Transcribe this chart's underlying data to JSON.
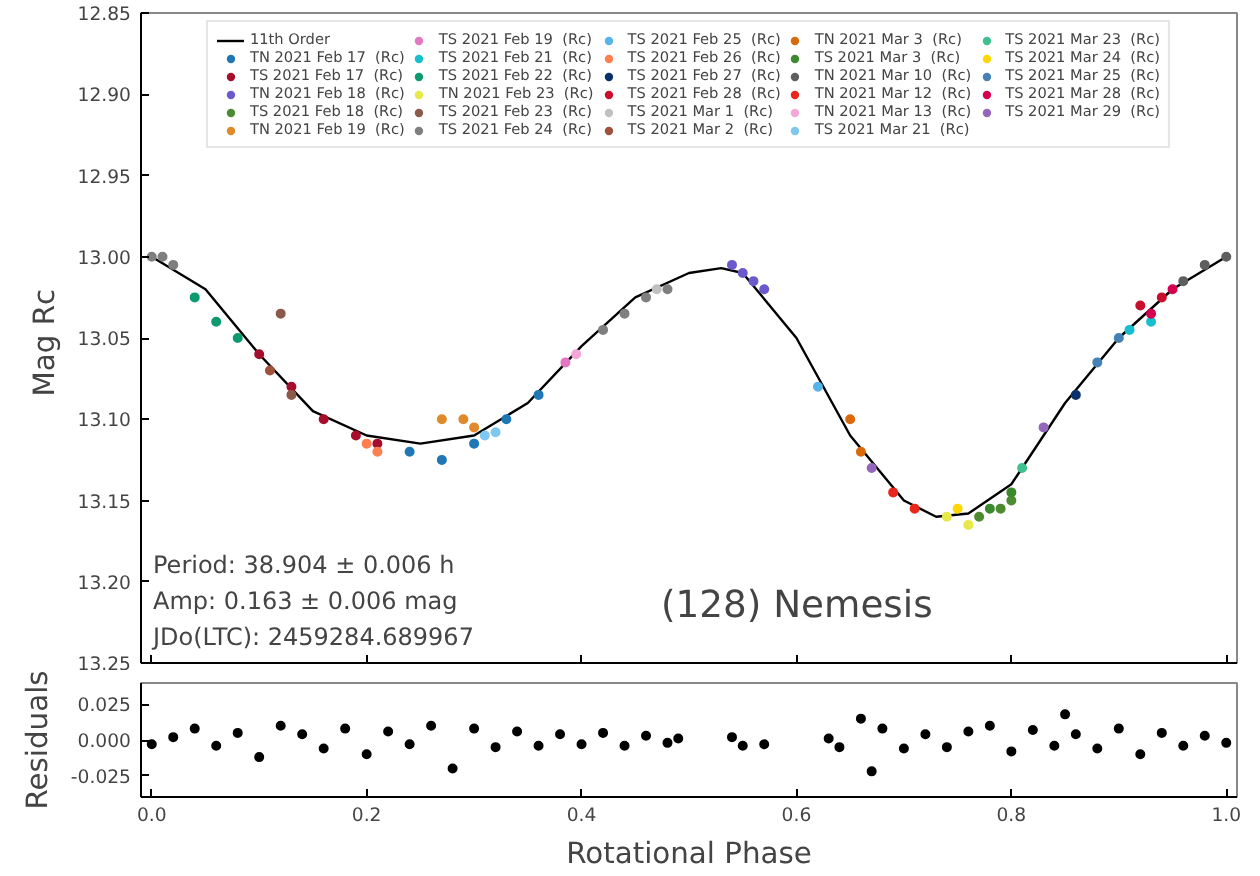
{
  "chart_data": [
    {
      "type": "scatter",
      "ylabel": "Mag  Rc",
      "xlim": [
        -0.01,
        1.01
      ],
      "ylim": [
        13.25,
        12.85
      ],
      "tick_labels": "y",
      "legend": "top",
      "marker": "circle",
      "grid": false,
      "xticks": [
        0,
        0.2,
        0.4,
        0.6,
        0.8,
        1.0
      ],
      "yticks": [
        {
          "value": 12.85,
          "label": "12.85"
        },
        {
          "value": 12.9,
          "label": "12.90"
        },
        {
          "value": 12.95,
          "label": "12.95"
        },
        {
          "value": 13.0,
          "label": "13.00"
        },
        {
          "value": 13.05,
          "label": "13.05"
        },
        {
          "value": 13.1,
          "label": "13.10"
        },
        {
          "value": 13.15,
          "label": "13.15"
        },
        {
          "value": 13.2,
          "label": "13.20"
        },
        {
          "value": 13.25,
          "label": "13.25"
        }
      ],
      "annotations": [
        "Period: 38.904 ± 0.006 h",
        "Amp: 0.163 ± 0.006 mag",
        "JDo(LTC): 2459284.689967",
        "(128) Nemesis"
      ],
      "series": [
        {
          "name": "11th Order",
          "type": "line",
          "marker": "none",
          "color": "#000000",
          "x": [
            0,
            0.05,
            0.1,
            0.15,
            0.2,
            0.25,
            0.3,
            0.35,
            0.4,
            0.45,
            0.5,
            0.53,
            0.55,
            0.6,
            0.65,
            0.7,
            0.73,
            0.76,
            0.8,
            0.85,
            0.9,
            0.95,
            1.0
          ],
          "values": [
            13.0,
            13.02,
            13.06,
            13.095,
            13.11,
            13.115,
            13.11,
            13.09,
            13.055,
            13.025,
            13.01,
            13.007,
            13.01,
            13.05,
            13.11,
            13.15,
            13.16,
            13.158,
            13.14,
            13.09,
            13.05,
            13.02,
            13.0
          ]
        },
        {
          "name": "TN 2021 Feb 17  (Rc)",
          "color": "#1f77b4",
          "x": [
            0.24,
            0.27,
            0.3,
            0.33,
            0.36
          ],
          "values": [
            13.12,
            13.125,
            13.115,
            13.1,
            13.085
          ]
        },
        {
          "name": "TS 2021 Feb 17  (Rc)",
          "color": "#a50f2d",
          "x": [
            0.1,
            0.13,
            0.16,
            0.19,
            0.21
          ],
          "values": [
            13.06,
            13.08,
            13.1,
            13.11,
            13.115
          ]
        },
        {
          "name": "TN 2021 Feb 18  (Rc)",
          "color": "#6a5acd",
          "x": [
            0.54,
            0.55,
            0.56,
            0.57
          ],
          "values": [
            13.005,
            13.01,
            13.015,
            13.02
          ]
        },
        {
          "name": "TS 2021 Feb 18  (Rc)",
          "color": "#4d8b31",
          "x": [
            0.77,
            0.79,
            0.8
          ],
          "values": [
            13.16,
            13.155,
            13.15
          ]
        },
        {
          "name": "TN 2021 Feb 19  (Rc)",
          "color": "#e08a2c",
          "x": [
            0.27,
            0.29,
            0.3
          ],
          "values": [
            13.1,
            13.1,
            13.105
          ]
        },
        {
          "name": "TS 2021 Feb 19  (Rc)",
          "color": "#e377c2",
          "x": [
            0.385
          ],
          "values": [
            13.065
          ]
        },
        {
          "name": "TS 2021 Feb 21  (Rc)",
          "color": "#17becf",
          "x": [
            0.91,
            0.93
          ],
          "values": [
            13.045,
            13.04
          ]
        },
        {
          "name": "TS 2021 Feb 22  (Rc)",
          "color": "#0d9a6e",
          "x": [
            0.04,
            0.06,
            0.08
          ],
          "values": [
            13.025,
            13.04,
            13.05
          ]
        },
        {
          "name": "TN 2021 Feb 23  (Rc)",
          "color": "#e8e84a",
          "x": [
            0.74,
            0.76
          ],
          "values": [
            13.16,
            13.165
          ]
        },
        {
          "name": "TS 2021 Feb 23  (Rc)",
          "color": "#8c5a4b",
          "x": [
            0.12,
            0.13
          ],
          "values": [
            13.035,
            13.085
          ]
        },
        {
          "name": "TS 2021 Feb 24  (Rc)",
          "color": "#7f7f7f",
          "x": [
            0.0,
            0.01,
            0.02,
            0.42,
            0.44,
            0.46,
            0.48
          ],
          "values": [
            13.0,
            13.0,
            13.005,
            13.045,
            13.035,
            13.025,
            13.02
          ]
        },
        {
          "name": "TS 2021 Feb 25  (Rc)",
          "color": "#56b4e9",
          "x": [
            0.62
          ],
          "values": [
            13.08
          ]
        },
        {
          "name": "TS 2021 Feb 26  (Rc)",
          "color": "#ff7f50",
          "x": [
            0.2,
            0.21
          ],
          "values": [
            13.115,
            13.12
          ]
        },
        {
          "name": "TS 2021 Feb 27  (Rc)",
          "color": "#08306b",
          "x": [
            0.86
          ],
          "values": [
            13.085
          ]
        },
        {
          "name": "TS 2021 Feb 28  (Rc)",
          "color": "#c8102e",
          "x": [
            0.92,
            0.94
          ],
          "values": [
            13.03,
            13.025
          ]
        },
        {
          "name": "TS 2021 Mar 1  (Rc)",
          "color": "#c0c0c0",
          "x": [
            0.47
          ],
          "values": [
            13.02
          ]
        },
        {
          "name": "TS 2021 Mar 2  (Rc)",
          "color": "#a0523d",
          "x": [
            0.11
          ],
          "values": [
            13.07
          ]
        },
        {
          "name": "TN 2021 Mar 3  (Rc)",
          "color": "#d96a0b",
          "x": [
            0.65,
            0.66
          ],
          "values": [
            13.1,
            13.12
          ]
        },
        {
          "name": "TS 2021 Mar 3  (Rc)",
          "color": "#3c8a2e",
          "x": [
            0.78,
            0.8
          ],
          "values": [
            13.155,
            13.145
          ]
        },
        {
          "name": "TN 2021 Mar 10  (Rc)",
          "color": "#5f5f5f",
          "x": [
            0.96,
            0.98,
            1.0
          ],
          "values": [
            13.015,
            13.005,
            13.0
          ]
        },
        {
          "name": "TN 2021 Mar 12  (Rc)",
          "color": "#e8281c",
          "x": [
            0.69,
            0.71
          ],
          "values": [
            13.145,
            13.155
          ]
        },
        {
          "name": "TN 2021 Mar 13  (Rc)",
          "color": "#f4a6d7",
          "x": [
            0.395
          ],
          "values": [
            13.06
          ]
        },
        {
          "name": "TS 2021 Mar 21  (Rc)",
          "color": "#7ec8f0",
          "x": [
            0.31,
            0.32
          ],
          "values": [
            13.11,
            13.108
          ]
        },
        {
          "name": "TS 2021 Mar 23  (Rc)",
          "color": "#40c090",
          "x": [
            0.81
          ],
          "values": [
            13.13
          ]
        },
        {
          "name": "TS 2021 Mar 24  (Rc)",
          "color": "#ffd700",
          "x": [
            0.75
          ],
          "values": [
            13.155
          ]
        },
        {
          "name": "TS 2021 Mar 25  (Rc)",
          "color": "#4682b4",
          "x": [
            0.88,
            0.9
          ],
          "values": [
            13.065,
            13.05
          ]
        },
        {
          "name": "TS 2021 Mar 28  (Rc)",
          "color": "#d4004f",
          "x": [
            0.93,
            0.95
          ],
          "values": [
            13.035,
            13.02
          ]
        },
        {
          "name": "TS 2021 Mar 29  (Rc)",
          "color": "#9467bd",
          "x": [
            0.67,
            0.83
          ],
          "values": [
            13.13,
            13.105
          ]
        }
      ]
    },
    {
      "type": "scatter",
      "xlabel": "Rotational Phase",
      "ylabel": "Residuals",
      "xlim": [
        -0.01,
        1.01
      ],
      "ylim": [
        -0.04,
        0.04
      ],
      "marker": "circle",
      "grid": false,
      "xticks": [
        {
          "value": 0,
          "label": "0.0"
        },
        0.2,
        0.4,
        0.6,
        0.8,
        {
          "value": 1.0,
          "label": "1.0"
        }
      ],
      "yticks": [
        0.025,
        {
          "value": 0,
          "label": "0.000"
        },
        {
          "value": -0.025,
          "label": "-0.025"
        }
      ],
      "series": [
        {
          "color": "#000000",
          "x": [
            0,
            0.02,
            0.04,
            0.06,
            0.08,
            0.1,
            0.12,
            0.14,
            0.16,
            0.18,
            0.2,
            0.22,
            0.24,
            0.26,
            0.28,
            0.3,
            0.32,
            0.34,
            0.36,
            0.38,
            0.4,
            0.42,
            0.44,
            0.46,
            0.48,
            0.49,
            0.54,
            0.55,
            0.57,
            0.63,
            0.64,
            0.66,
            0.67,
            0.68,
            0.7,
            0.72,
            0.74,
            0.76,
            0.78,
            0.8,
            0.82,
            0.84,
            0.85,
            0.86,
            0.88,
            0.9,
            0.92,
            0.94,
            0.96,
            0.98,
            1.0
          ],
          "values": [
            -0.003,
            0.002,
            0.008,
            -0.004,
            0.005,
            -0.012,
            0.01,
            0.004,
            -0.006,
            0.008,
            -0.01,
            0.006,
            -0.003,
            0.01,
            -0.02,
            0.008,
            -0.005,
            0.006,
            -0.004,
            0.004,
            -0.003,
            0.005,
            -0.004,
            0.003,
            -0.002,
            0.001,
            0.002,
            -0.004,
            -0.003,
            0.001,
            -0.005,
            0.015,
            -0.022,
            0.008,
            -0.006,
            0.004,
            -0.005,
            0.006,
            0.01,
            -0.008,
            0.007,
            -0.004,
            0.018,
            0.004,
            -0.006,
            0.008,
            -0.01,
            0.005,
            -0.004,
            0.003,
            -0.002
          ]
        }
      ]
    }
  ]
}
